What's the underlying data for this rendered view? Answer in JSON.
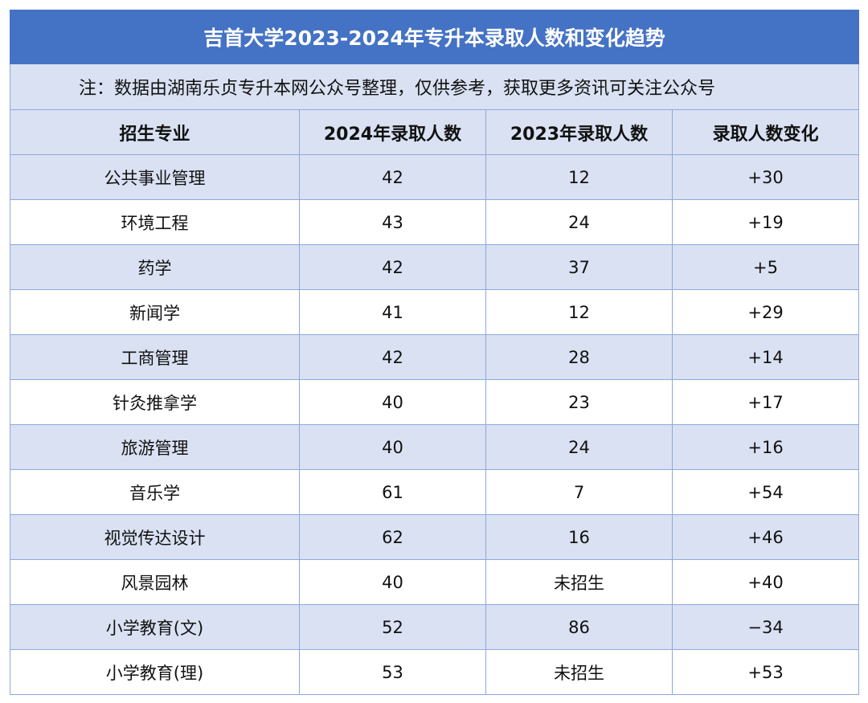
{
  "table": {
    "title": "吉首大学2023-2024年专升本录取人数和变化趋势",
    "note": "注：数据由湖南乐贞专升本网公众号整理，仅供参考，获取更多资讯可关注公众号",
    "headers": [
      "招生专业",
      "2024年录取人数",
      "2023年录取人数",
      "录取人数变化"
    ],
    "rows": [
      [
        "公共事业管理",
        "42",
        "12",
        "+30"
      ],
      [
        "环境工程",
        "43",
        "24",
        "+19"
      ],
      [
        "药学",
        "42",
        "37",
        "+5"
      ],
      [
        "新闻学",
        "41",
        "12",
        "+29"
      ],
      [
        "工商管理",
        "42",
        "28",
        "+14"
      ],
      [
        "针灸推拿学",
        "40",
        "23",
        "+17"
      ],
      [
        "旅游管理",
        "40",
        "24",
        "+16"
      ],
      [
        "音乐学",
        "61",
        "7",
        "+54"
      ],
      [
        "视觉传达设计",
        "62",
        "16",
        "+46"
      ],
      [
        "风景园林",
        "40",
        "未招生",
        "+40"
      ],
      [
        "小学教育(文)",
        "52",
        "86",
        "−34"
      ],
      [
        "小学教育(理)",
        "53",
        "未招生",
        "+53"
      ]
    ]
  },
  "colors": {
    "title_bg": "#4472C4",
    "band_bg": "#D9E1F2",
    "border": "#8EA9DB"
  }
}
